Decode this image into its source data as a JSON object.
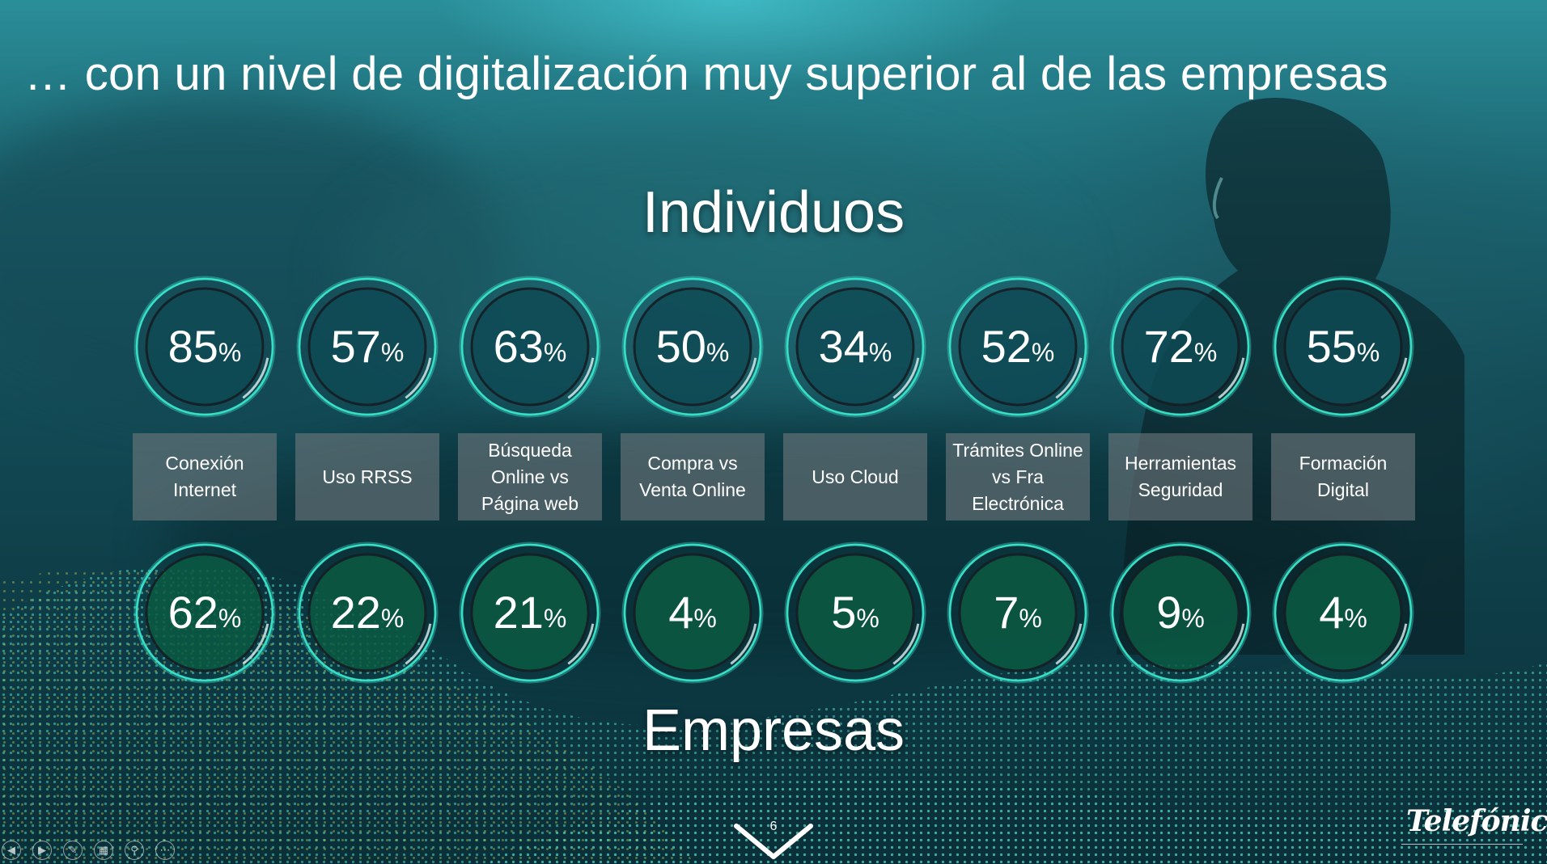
{
  "slide": {
    "title": "… con un nivel de digitalización muy superior al de las empresas",
    "page_number": "6",
    "logo_text": "Telefónica",
    "colors": {
      "ring_individuos": "#0e4a55",
      "ring_empresas": "#0b5a42",
      "ring_stroke": "#35e0c5",
      "label_bg": "#6e787d"
    }
  },
  "individuos": {
    "heading": "Individuos",
    "items": [
      {
        "num": "85",
        "pct": "%",
        "value": 85
      },
      {
        "num": "57",
        "pct": "%",
        "value": 57
      },
      {
        "num": "63",
        "pct": "%",
        "value": 63
      },
      {
        "num": "50",
        "pct": "%",
        "value": 50
      },
      {
        "num": "34",
        "pct": "%",
        "value": 34
      },
      {
        "num": "52",
        "pct": "%",
        "value": 52
      },
      {
        "num": "72",
        "pct": "%",
        "value": 72
      },
      {
        "num": "55",
        "pct": "%",
        "value": 55
      }
    ]
  },
  "labels": [
    {
      "line1": "Conexión",
      "line2": "Internet",
      "line3": ""
    },
    {
      "line1": "Uso RRSS",
      "line2": "",
      "line3": ""
    },
    {
      "line1": "Búsqueda",
      "line2": "Online vs",
      "line3": "Página web"
    },
    {
      "line1": "Compra vs",
      "line2": "Venta Online",
      "line3": ""
    },
    {
      "line1": "Uso Cloud",
      "line2": "",
      "line3": ""
    },
    {
      "line1": "Trámites Online",
      "line2": "vs Fra",
      "line3": "Electrónica"
    },
    {
      "line1": "Herramientas",
      "line2": "Seguridad",
      "line3": ""
    },
    {
      "line1": "Formación",
      "line2": "Digital",
      "line3": ""
    }
  ],
  "empresas": {
    "heading": "Empresas",
    "items": [
      {
        "num": "62",
        "pct": "%",
        "value": 62
      },
      {
        "num": "22",
        "pct": "%",
        "value": 22
      },
      {
        "num": "21",
        "pct": "%",
        "value": 21
      },
      {
        "num": "4",
        "pct": "%",
        "value": 4
      },
      {
        "num": "5",
        "pct": "%",
        "value": 5
      },
      {
        "num": "7",
        "pct": "%",
        "value": 7
      },
      {
        "num": "9",
        "pct": "%",
        "value": 9
      },
      {
        "num": "4",
        "pct": "%",
        "value": 4
      }
    ]
  },
  "controls": [
    {
      "icon": "previous-icon"
    },
    {
      "icon": "next-icon"
    },
    {
      "icon": "pen-icon"
    },
    {
      "icon": "slides-grid-icon"
    },
    {
      "icon": "zoom-icon"
    },
    {
      "icon": "more-options-icon"
    }
  ]
}
